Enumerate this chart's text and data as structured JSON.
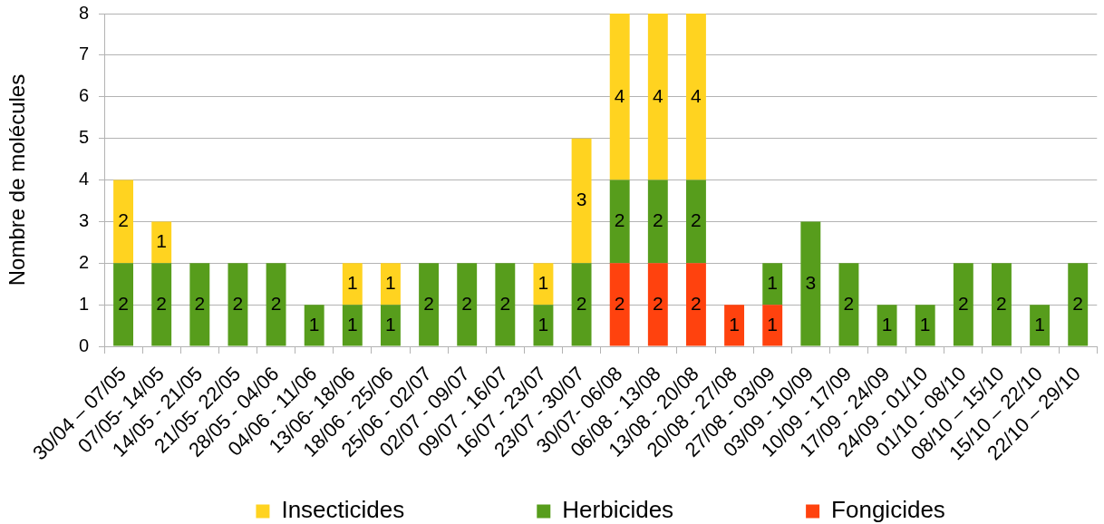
{
  "chart_data": {
    "type": "bar",
    "ylabel": "Nombre de molécules",
    "categories": [
      "30/04 – 07/05",
      "07/05- 14/05",
      "14/05 - 21/05",
      "21/05- 22/05",
      "28/05 - 04/06",
      "04/06 - 11/06",
      "13/06- 18/06",
      "18/06 - 25/06",
      "25/06 - 02/07",
      "02/07 - 09/07",
      "09/07 - 16/07",
      "16/07 - 23/07",
      "23/07 - 30/07",
      "30/07- 06/08",
      "06/08 - 13/08",
      "13/08 - 20/08",
      "20/08 - 27/08",
      "27/08 - 03/09",
      "03/09 - 10/09",
      "10/09 - 17/09",
      "17/09 - 24/09",
      "24/09 - 01/10",
      "01/10 - 08/10",
      "08/10 – 15/10",
      "15/10 – 22/10",
      "22/10 – 29/10"
    ],
    "series": [
      {
        "name": "Fongicides",
        "color": "#ff420e",
        "values": [
          null,
          null,
          null,
          null,
          null,
          null,
          null,
          null,
          null,
          null,
          null,
          null,
          null,
          2,
          2,
          2,
          1,
          1,
          null,
          null,
          null,
          null,
          null,
          null,
          null,
          null
        ]
      },
      {
        "name": "Herbicides",
        "color": "#579d1c",
        "values": [
          2,
          2,
          2,
          2,
          2,
          1,
          1,
          1,
          2,
          2,
          2,
          1,
          2,
          2,
          2,
          2,
          null,
          1,
          3,
          2,
          1,
          1,
          2,
          2,
          1,
          2
        ]
      },
      {
        "name": "Insecticides",
        "color": "#ffd320",
        "values": [
          2,
          1,
          null,
          null,
          null,
          null,
          1,
          1,
          null,
          null,
          null,
          1,
          3,
          4,
          4,
          4,
          null,
          null,
          null,
          null,
          null,
          null,
          null,
          null,
          null,
          null
        ]
      }
    ],
    "stacked": true,
    "ylim": [
      0,
      8
    ],
    "yticks": [
      0,
      1,
      2,
      3,
      4,
      5,
      6,
      7,
      8
    ],
    "grid": "y",
    "legend": "bottom",
    "data_labels": true
  }
}
